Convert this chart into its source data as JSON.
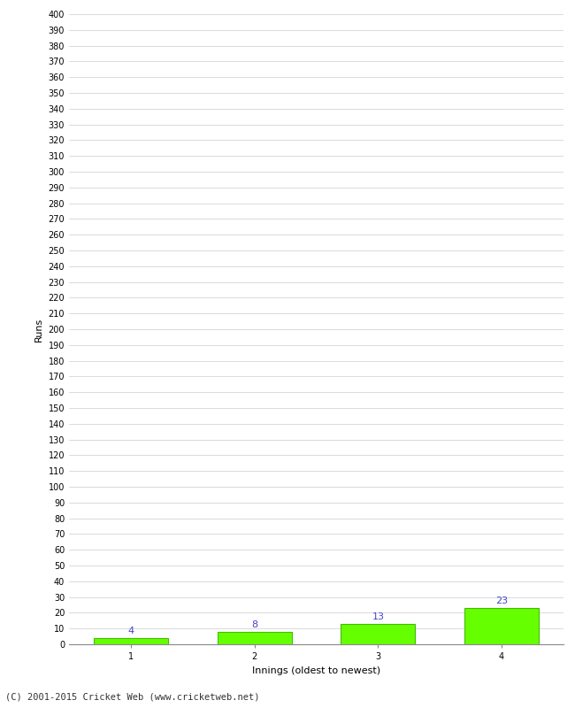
{
  "categories": [
    1,
    2,
    3,
    4
  ],
  "values": [
    4,
    8,
    13,
    23
  ],
  "bar_color": "#66ff00",
  "bar_edge_color": "#44bb00",
  "value_label_color": "#4444cc",
  "xlabel": "Innings (oldest to newest)",
  "ylabel": "Runs",
  "ylim": [
    0,
    400
  ],
  "yticks": [
    0,
    10,
    20,
    30,
    40,
    50,
    60,
    70,
    80,
    90,
    100,
    110,
    120,
    130,
    140,
    150,
    160,
    170,
    180,
    190,
    200,
    210,
    220,
    230,
    240,
    250,
    260,
    270,
    280,
    290,
    300,
    310,
    320,
    330,
    340,
    350,
    360,
    370,
    380,
    390,
    400
  ],
  "footer": "(C) 2001-2015 Cricket Web (www.cricketweb.net)",
  "background_color": "#ffffff",
  "grid_color": "#cccccc",
  "bar_width": 0.6,
  "value_fontsize": 8,
  "axis_label_fontsize": 8,
  "tick_fontsize": 7,
  "footer_fontsize": 7.5
}
